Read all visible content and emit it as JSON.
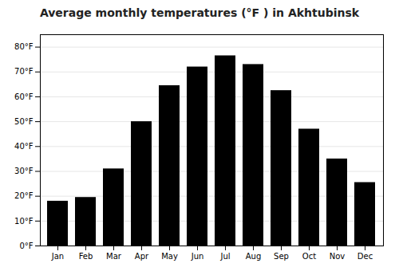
{
  "chart_data": {
    "type": "bar",
    "title": "Average monthly temperatures (°F ) in Akhtubinsk",
    "categories": [
      "Jan",
      "Feb",
      "Mar",
      "Apr",
      "May",
      "Jun",
      "Jul",
      "Aug",
      "Sep",
      "Oct",
      "Nov",
      "Dec"
    ],
    "values": [
      18,
      19.5,
      31,
      50,
      64.5,
      72,
      76.5,
      73,
      62.5,
      47,
      35,
      25.5
    ],
    "ylim": [
      0,
      85
    ],
    "yticks": [
      {
        "value": 0,
        "label": "0°F"
      },
      {
        "value": 10,
        "label": "10°F"
      },
      {
        "value": 20,
        "label": "20°F"
      },
      {
        "value": 30,
        "label": "30°F"
      },
      {
        "value": 40,
        "label": "40°F"
      },
      {
        "value": 50,
        "label": "50°F"
      },
      {
        "value": 60,
        "label": "60°F"
      },
      {
        "value": 70,
        "label": "70°F"
      },
      {
        "value": 80,
        "label": "80°F"
      }
    ],
    "grid": true
  }
}
